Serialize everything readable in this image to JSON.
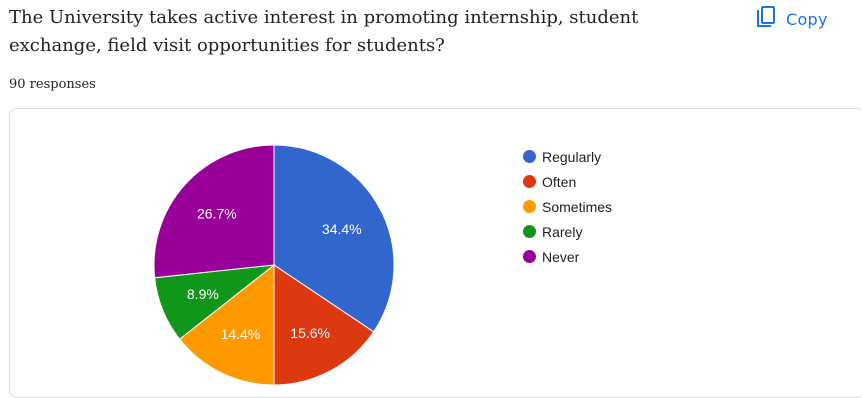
{
  "question": {
    "line1": "The University takes active interest in promoting internship, student",
    "line2": "exchange, field visit opportunities for students?"
  },
  "copy_button": {
    "label": "Copy",
    "icon": "copy-icon",
    "color": "#1a73e8"
  },
  "responses_text": "90 responses",
  "chart_data": {
    "type": "pie",
    "title": "",
    "total_responses": 90,
    "slices": [
      {
        "label": "Regularly",
        "percent": 34.4,
        "display": "34.4%",
        "color": "#3366cc"
      },
      {
        "label": "Often",
        "percent": 15.6,
        "display": "15.6%",
        "color": "#dc3912"
      },
      {
        "label": "Sometimes",
        "percent": 14.4,
        "display": "14.4%",
        "color": "#ff9900"
      },
      {
        "label": "Rarely",
        "percent": 8.9,
        "display": "8.9%",
        "color": "#109618"
      },
      {
        "label": "Never",
        "percent": 26.7,
        "display": "26.7%",
        "color": "#990099"
      }
    ],
    "legend_position": "right"
  }
}
